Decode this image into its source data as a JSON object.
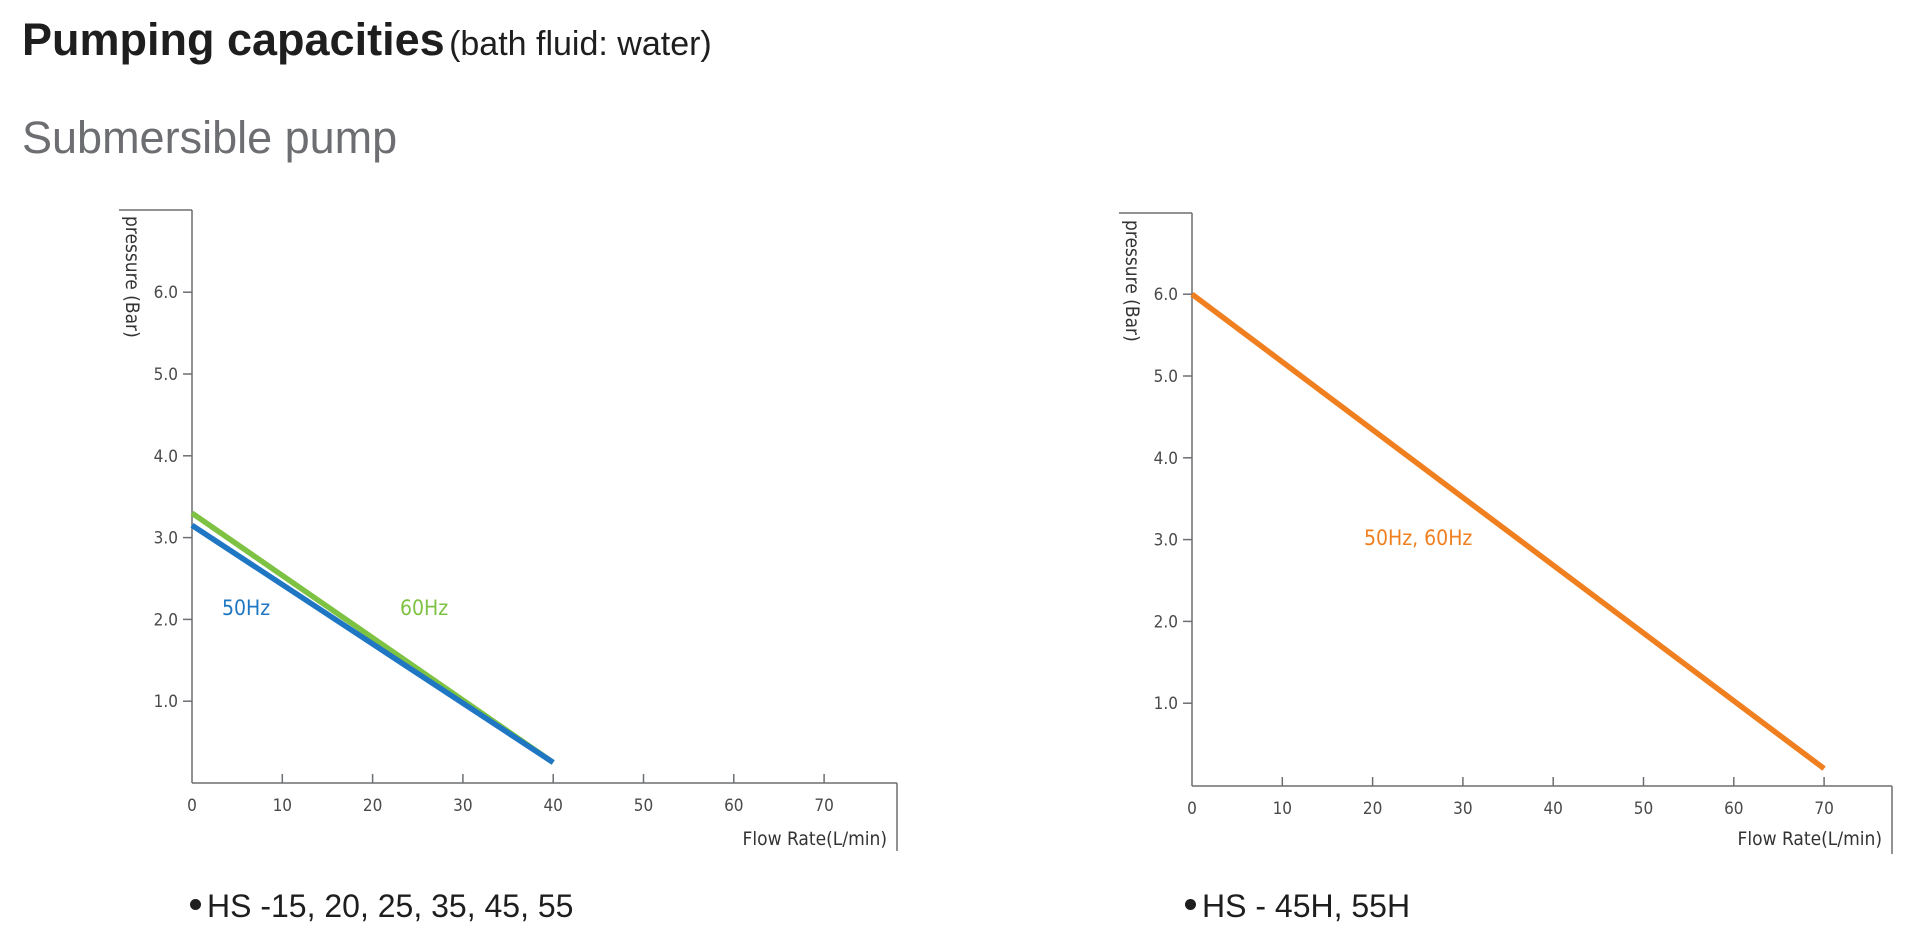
{
  "header": {
    "title": "Pumping capacities",
    "title_note": "(bath fluid: water)",
    "subtitle": "Submersible pump"
  },
  "chart_data": [
    {
      "type": "line",
      "xlabel": "Flow Rate(L/min)",
      "ylabel": "pressure (Bar)",
      "xticks": [
        "0",
        "10",
        "20",
        "30",
        "40",
        "50",
        "60",
        "70"
      ],
      "yticks": [
        "1.0",
        "2.0",
        "3.0",
        "4.0",
        "5.0",
        "6.0"
      ],
      "xlim": [
        0,
        78
      ],
      "ylim": [
        0,
        7
      ],
      "series": [
        {
          "name": "60Hz",
          "color": "#7dc242",
          "x": [
            0,
            40
          ],
          "y": [
            3.3,
            0.25
          ]
        },
        {
          "name": "50Hz",
          "color": "#1f77c4",
          "x": [
            0,
            40
          ],
          "y": [
            3.15,
            0.25
          ]
        }
      ],
      "caption": "HS -15, 20, 25, 35, 45, 55"
    },
    {
      "type": "line",
      "xlabel": "Flow Rate(L/min)",
      "ylabel": "pressure (Bar)",
      "xticks": [
        "0",
        "10",
        "20",
        "30",
        "40",
        "50",
        "60",
        "70"
      ],
      "yticks": [
        "1.0",
        "2.0",
        "3.0",
        "4.0",
        "5.0",
        "6.0"
      ],
      "xlim": [
        0,
        78
      ],
      "ylim": [
        0,
        7
      ],
      "series": [
        {
          "name": "50Hz, 60Hz",
          "color": "#f07f1f",
          "x": [
            0,
            70
          ],
          "y": [
            6.0,
            0.2
          ]
        }
      ],
      "caption": "HS - 45H, 55H"
    }
  ]
}
